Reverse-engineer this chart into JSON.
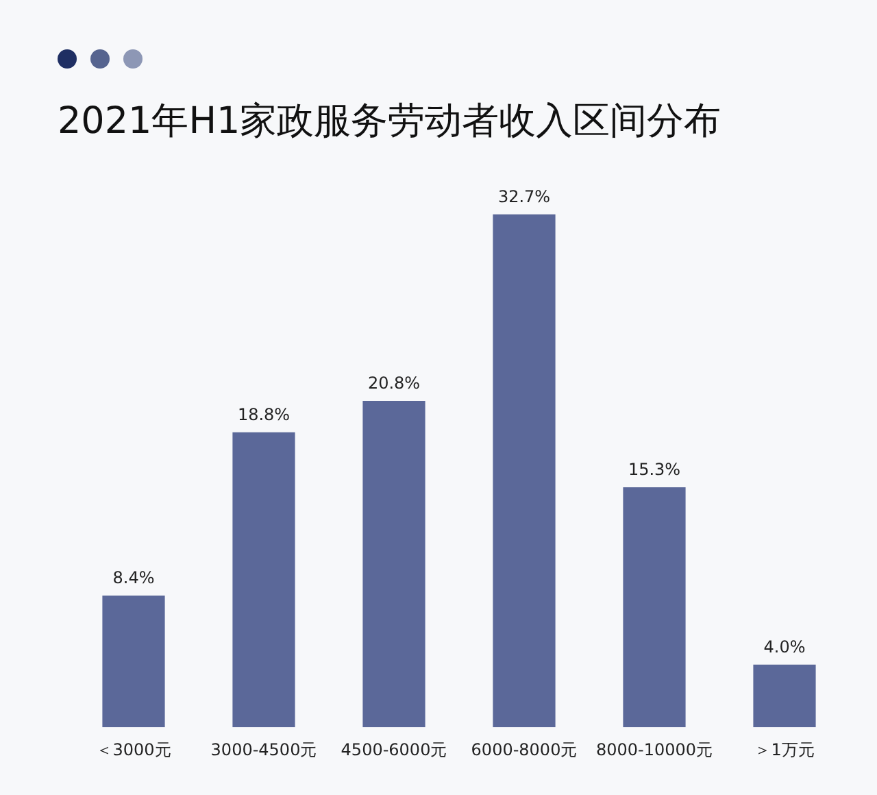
{
  "chart_data": {
    "type": "bar",
    "title": "2021年H1家政服务劳动者收入区间分布",
    "categories": [
      "＜3000元",
      "3000-4500元",
      "4500-6000元",
      "6000-8000元",
      "8000-10000元",
      "＞1万元"
    ],
    "values": [
      8.4,
      18.8,
      20.8,
      32.7,
      15.3,
      4.0
    ],
    "value_labels": [
      "8.4%",
      "18.8%",
      "20.8%",
      "32.7%",
      "15.3%",
      "4.0%"
    ],
    "color": "#5b6899",
    "grid": false,
    "legend": false
  }
}
